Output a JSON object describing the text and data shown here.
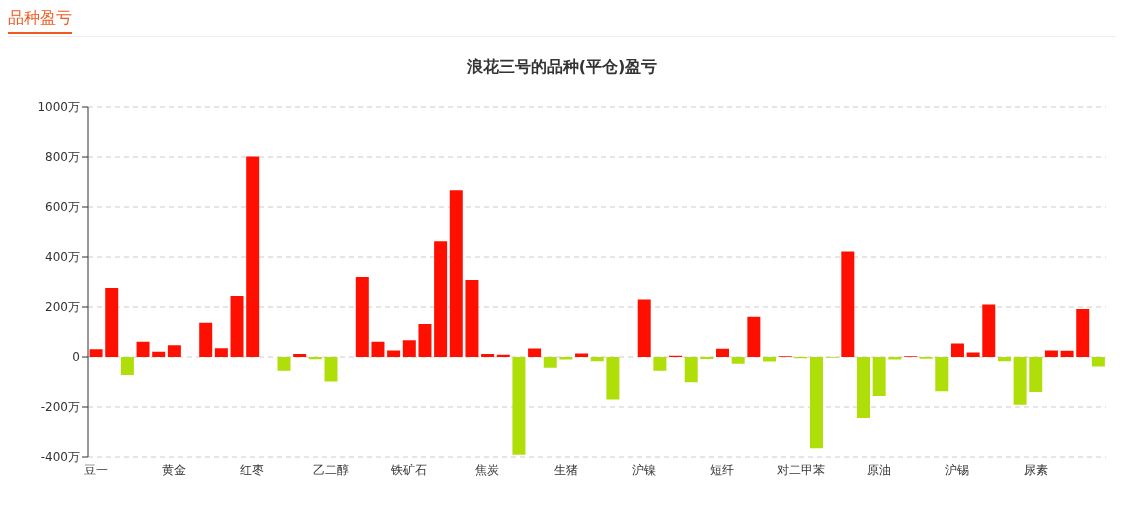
{
  "chart_data": {
    "type": "bar",
    "title": "浪花三号的品种(平仓)盈亏",
    "annotations": [
      "品种盈亏"
    ],
    "categories": [
      "豆一",
      null,
      null,
      null,
      null,
      "黄金",
      null,
      null,
      null,
      null,
      "红枣",
      null,
      null,
      null,
      null,
      "乙二醇",
      null,
      null,
      null,
      null,
      "铁矿石",
      null,
      null,
      null,
      null,
      "焦炭",
      null,
      null,
      null,
      null,
      "生猪",
      null,
      null,
      null,
      null,
      "沪镍",
      null,
      null,
      null,
      null,
      "短纤",
      null,
      null,
      null,
      null,
      "对二甲苯",
      null,
      null,
      null,
      null,
      "原油",
      null,
      null,
      null,
      null,
      "沪锡",
      null,
      null,
      null,
      null,
      "尿素",
      null,
      null,
      null,
      null
    ],
    "values": [
      31,
      276,
      -72,
      61,
      21,
      47,
      0,
      137,
      35,
      244,
      802,
      0,
      -55,
      12,
      -9,
      -98,
      0,
      320,
      61,
      26,
      67,
      132,
      463,
      667,
      308,
      12,
      9,
      -391,
      34,
      -43,
      -10,
      14,
      -17,
      -170,
      0,
      230,
      -55,
      5,
      -101,
      -8,
      33,
      -27,
      161,
      -18,
      3,
      -5,
      -365,
      -3,
      422,
      -244,
      -156,
      -10,
      3,
      -7,
      -137,
      54,
      18,
      210,
      -17,
      -191,
      -140,
      26,
      25,
      192,
      -38
    ],
    "colors": [
      "#ff0f00",
      "#ff0f00",
      "#b0de09",
      "#ff0f00",
      "#ff0f00",
      "#ff0f00",
      "#ff0f00",
      "#ff0f00",
      "#ff0f00",
      "#ff0f00",
      "#ff0f00",
      "#ff0f00",
      "#b0de09",
      "#ff0f00",
      "#b0de09",
      "#b0de09",
      "#ff0f00",
      "#ff0f00",
      "#ff0f00",
      "#ff0f00",
      "#ff0f00",
      "#ff0f00",
      "#ff0f00",
      "#ff0f00",
      "#ff0f00",
      "#ff0f00",
      "#ff0f00",
      "#b0de09",
      "#ff0f00",
      "#b0de09",
      "#b0de09",
      "#ff0f00",
      "#b0de09",
      "#b0de09",
      "#ff0f00",
      "#ff0f00",
      "#b0de09",
      "#ff0f00",
      "#b0de09",
      "#b0de09",
      "#ff0f00",
      "#b0de09",
      "#ff0f00",
      "#b0de09",
      "#ff0f00",
      "#b0de09",
      "#b0de09",
      "#b0de09",
      "#ff0f00",
      "#b0de09",
      "#b0de09",
      "#b0de09",
      "#ff0f00",
      "#b0de09",
      "#b0de09",
      "#ff0f00",
      "#ff0f00",
      "#ff0f00",
      "#b0de09",
      "#b0de09",
      "#b0de09",
      "#ff0f00",
      "#ff0f00",
      "#ff0f00",
      "#b0de09"
    ],
    "ylim": [
      -400,
      1000
    ],
    "yticks": [
      {
        "value": -400,
        "label": "-400万"
      },
      {
        "value": -200,
        "label": "-200万"
      },
      {
        "value": 0,
        "label": "0"
      },
      {
        "value": 200,
        "label": "200万"
      },
      {
        "value": 400,
        "label": "400万"
      },
      {
        "value": 600,
        "label": "600万"
      },
      {
        "value": 800,
        "label": "800万"
      },
      {
        "value": 1000,
        "label": "1000万"
      }
    ],
    "grid": "y"
  }
}
